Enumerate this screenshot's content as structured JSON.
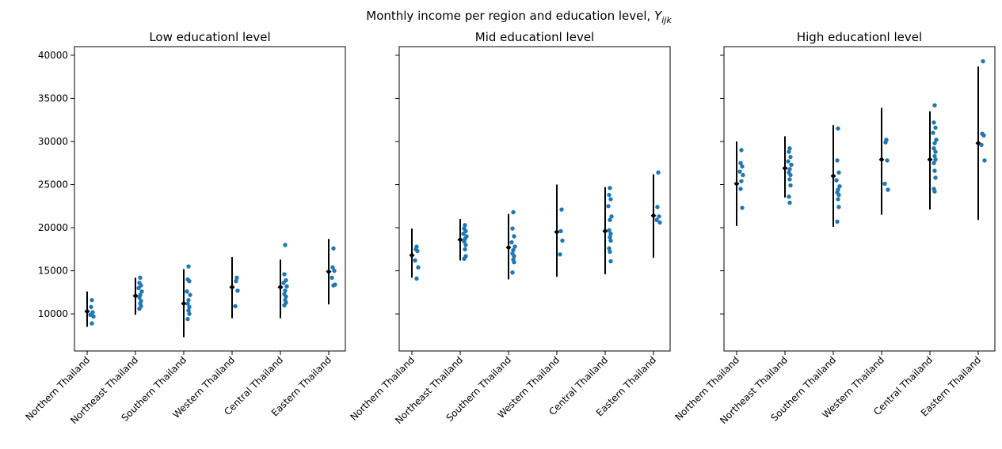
{
  "figure": {
    "suptitle": "Monthly income per region and education level, ",
    "suptitle_symbol": "Y",
    "suptitle_subscript": "ijk"
  },
  "colors": {
    "points": "#1f77b4",
    "summary": "#000000",
    "axes": "#000000"
  },
  "chart_data": [
    {
      "type": "scatter",
      "title": "Low educationl level",
      "categories": [
        "Northern Thailand",
        "Northeast Thailand",
        "Southern Thailand",
        "Western Thailand",
        "Central Thailand",
        "Eastern Thailand"
      ],
      "ylim": [
        5700,
        41000
      ],
      "yticks": [
        10000,
        15000,
        20000,
        25000,
        30000,
        35000,
        40000
      ],
      "show_ytick_labels": true,
      "summary": [
        {
          "mean": 10300,
          "low": 8500,
          "high": 12600
        },
        {
          "mean": 12100,
          "low": 9900,
          "high": 14200
        },
        {
          "mean": 11200,
          "low": 7300,
          "high": 15200
        },
        {
          "mean": 13100,
          "low": 9500,
          "high": 16600
        },
        {
          "mean": 13100,
          "low": 9500,
          "high": 16300
        },
        {
          "mean": 14900,
          "low": 11100,
          "high": 18700
        }
      ],
      "points": [
        [
          11600,
          10800,
          10200,
          9900,
          9700,
          8900
        ],
        [
          14200,
          13600,
          13300,
          13000,
          12600,
          12200,
          11900,
          11500,
          11200,
          10900,
          10600
        ],
        [
          15500,
          14000,
          13800,
          12600,
          12200,
          11600,
          11200,
          10800,
          10400,
          10000,
          9400
        ],
        [
          14200,
          13800,
          12700,
          10900
        ],
        [
          18000,
          14600,
          13900,
          13600,
          13200,
          12700,
          12300,
          12000,
          11600,
          11300,
          11000
        ],
        [
          17600,
          15400,
          15000,
          14200,
          13400,
          13300
        ]
      ]
    },
    {
      "type": "scatter",
      "title": "Mid educationl level",
      "categories": [
        "Northern Thailand",
        "Northeast Thailand",
        "Southern Thailand",
        "Western Thailand",
        "Central Thailand",
        "Eastern Thailand"
      ],
      "ylim": [
        5700,
        41000
      ],
      "yticks": [
        10000,
        15000,
        20000,
        25000,
        30000,
        35000,
        40000
      ],
      "show_ytick_labels": false,
      "summary": [
        {
          "mean": 16800,
          "low": 14200,
          "high": 19900
        },
        {
          "mean": 18600,
          "low": 16200,
          "high": 21000
        },
        {
          "mean": 17700,
          "low": 14000,
          "high": 21600
        },
        {
          "mean": 19500,
          "low": 14300,
          "high": 25000
        },
        {
          "mean": 19600,
          "low": 14600,
          "high": 24700
        },
        {
          "mean": 21400,
          "low": 16500,
          "high": 26200
        }
      ],
      "points": [
        [
          17800,
          17500,
          17300,
          16200,
          15400,
          14100
        ],
        [
          20300,
          19900,
          19600,
          19300,
          19000,
          18700,
          18400,
          18000,
          17500,
          16700,
          16400
        ],
        [
          21800,
          19900,
          19000,
          18300,
          17800,
          17400,
          17000,
          16700,
          16300,
          16000,
          14800
        ],
        [
          22100,
          19600,
          18500,
          16900
        ],
        [
          24600,
          23800,
          23300,
          22500,
          21300,
          20900,
          19700,
          19300,
          18900,
          18500,
          17600,
          17200,
          16100
        ],
        [
          26400,
          22400,
          21300,
          20900,
          20600
        ]
      ]
    },
    {
      "type": "scatter",
      "title": "High educationl level",
      "categories": [
        "Northern Thailand",
        "Northeast Thailand",
        "Southern Thailand",
        "Western Thailand",
        "Central Thailand",
        "Eastern Thailand"
      ],
      "ylim": [
        5700,
        41000
      ],
      "yticks": [
        10000,
        15000,
        20000,
        25000,
        30000,
        35000,
        40000
      ],
      "show_ytick_labels": false,
      "summary": [
        {
          "mean": 25100,
          "low": 20200,
          "high": 30000
        },
        {
          "mean": 26900,
          "low": 23500,
          "high": 30600
        },
        {
          "mean": 26000,
          "low": 20100,
          "high": 31900
        },
        {
          "mean": 27900,
          "low": 21500,
          "high": 33900
        },
        {
          "mean": 27900,
          "low": 22100,
          "high": 33500
        },
        {
          "mean": 29800,
          "low": 20900,
          "high": 38700
        }
      ],
      "points": [
        [
          29000,
          27500,
          27100,
          26500,
          26100,
          25400,
          24500,
          22300
        ],
        [
          29200,
          28800,
          28200,
          27700,
          27300,
          26800,
          26400,
          26100,
          25600,
          24900,
          23600,
          22900
        ],
        [
          31500,
          27800,
          26400,
          25500,
          24800,
          24400,
          24100,
          23800,
          23300,
          22400,
          20700
        ],
        [
          30200,
          29900,
          27800,
          25100,
          24400
        ],
        [
          34200,
          32200,
          31600,
          31000,
          30200,
          29800,
          29200,
          28800,
          28300,
          27900,
          27500,
          26600,
          25800,
          24500,
          24200
        ],
        [
          39300,
          30900,
          30700,
          29600,
          27800
        ]
      ]
    }
  ]
}
